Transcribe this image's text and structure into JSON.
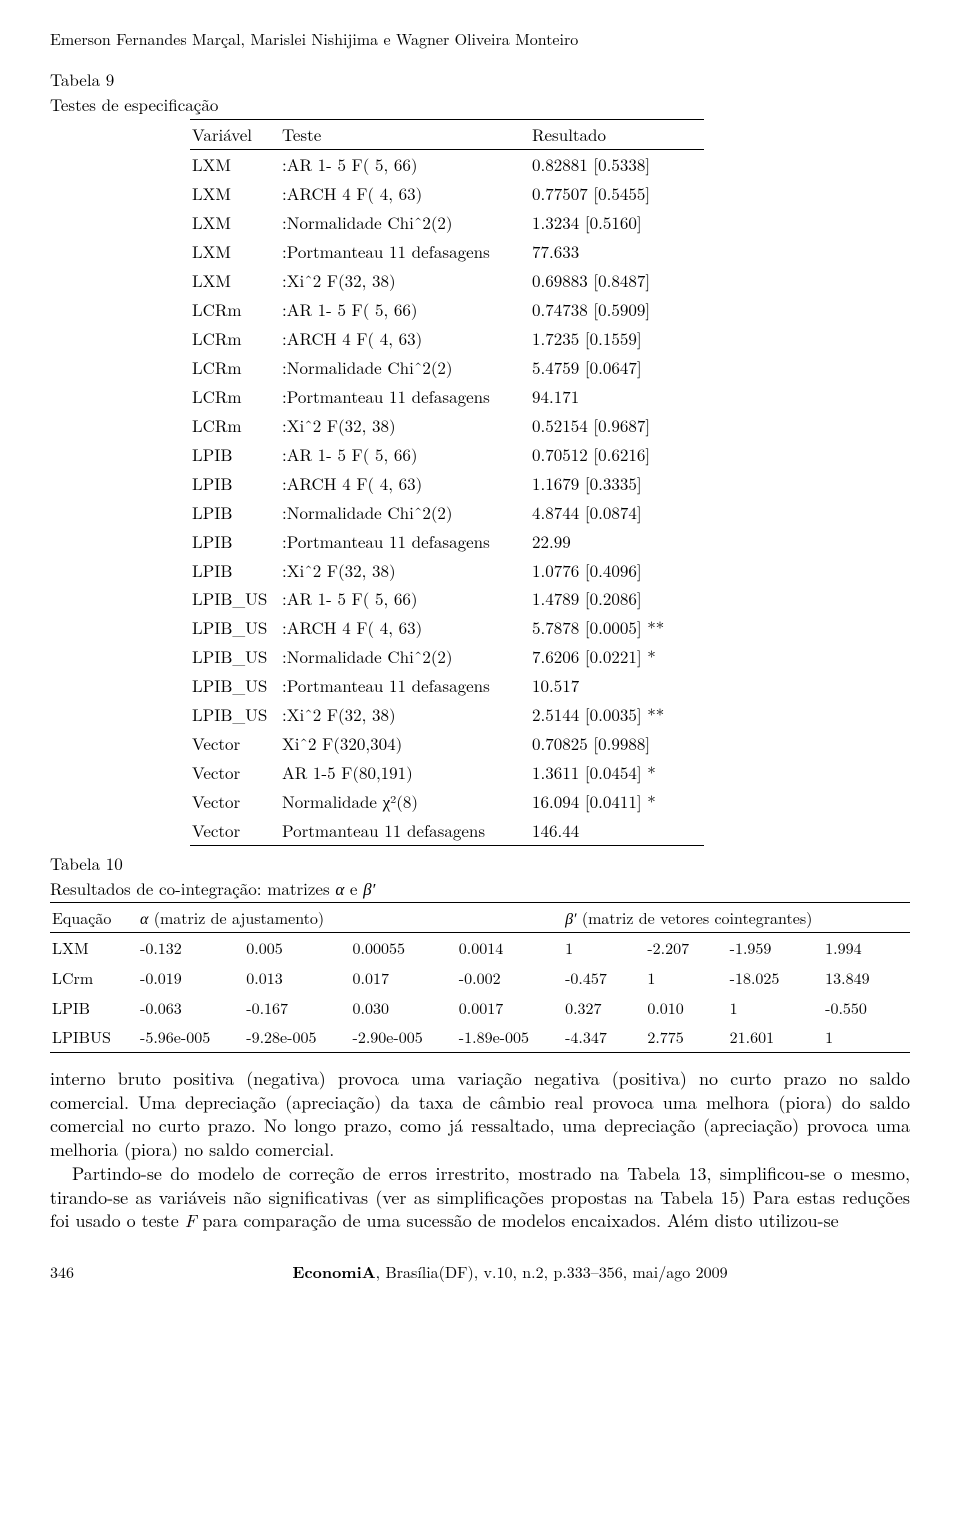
{
  "header": {
    "authors": "Emerson Fernandes Marçal, Marislei Nishijima e Wagner Oliveira Monteiro"
  },
  "table9": {
    "label": "Tabela 9",
    "caption": "Testes de especificação",
    "headers": {
      "var": "Variável",
      "test": "Teste",
      "res": "Resultado"
    },
    "rows": [
      {
        "var": "LXM",
        "test": ":AR 1- 5 F( 5, 66)",
        "res": "0.82881 [0.5338]"
      },
      {
        "var": "LXM",
        "test": ":ARCH 4 F( 4, 63)",
        "res": "0.77507 [0.5455]"
      },
      {
        "var": "LXM",
        "test": ":Normalidade Chiˆ2(2)",
        "res": "1.3234 [0.5160]"
      },
      {
        "var": "LXM",
        "test": ":Portmanteau 11 defasagens",
        "res": "77.633"
      },
      {
        "var": "LXM",
        "test": ":Xiˆ2 F(32, 38)",
        "res": "0.69883 [0.8487]"
      },
      {
        "var": "LCRm",
        "test": ":AR 1- 5 F( 5, 66)",
        "res": "0.74738 [0.5909]"
      },
      {
        "var": " LCRm",
        "test": ":ARCH 4 F( 4, 63)",
        "res": "1.7235 [0.1559]"
      },
      {
        "var": "LCRm",
        "test": ":Normalidade Chiˆ2(2)",
        "res": "5.4759 [0.0647]"
      },
      {
        "var": "LCRm",
        "test": ":Portmanteau 11 defasagens",
        "res": "94.171"
      },
      {
        "var": "LCRm",
        "test": ":Xiˆ2 F(32, 38)",
        "res": "0.52154 [0.9687]"
      },
      {
        "var": "LPIB",
        "test": ":AR 1- 5 F( 5, 66)",
        "res": "0.70512 [0.6216]"
      },
      {
        "var": "LPIB",
        "test": ":ARCH 4 F( 4, 63)",
        "res": "1.1679 [0.3335]"
      },
      {
        "var": "LPIB",
        "test": ":Normalidade Chiˆ2(2)",
        "res": "4.8744 [0.0874]"
      },
      {
        "var": "LPIB",
        "test": ":Portmanteau 11 defasagens",
        "res": "22.99"
      },
      {
        "var": "LPIB",
        "test": ":Xiˆ2 F(32, 38)",
        "res": "1.0776 [0.4096]"
      },
      {
        "var": "LPIB_US",
        "test": ":AR 1- 5 F( 5, 66)",
        "res": "1.4789 [0.2086]"
      },
      {
        "var": "LPIB_US",
        "test": ":ARCH 4 F( 4, 63)",
        "res": "5.7878 [0.0005] **"
      },
      {
        "var": "LPIB_US",
        "test": ":Normalidade Chiˆ2(2)",
        "res": "7.6206 [0.0221] *"
      },
      {
        "var": "LPIB_US",
        "test": ":Portmanteau 11 defasagens",
        "res": "10.517"
      },
      {
        "var": "LPIB_US",
        "test": ":Xiˆ2 F(32, 38)",
        "res": "2.5144 [0.0035] **"
      },
      {
        "var": "Vector",
        "test": "Xiˆ2 F(320,304)",
        "res": "0.70825 [0.9988]"
      },
      {
        "var": "Vector",
        "test": "AR 1-5 F(80,191)",
        "res": "1.3611 [0.0454] *"
      },
      {
        "var": "Vector",
        "test": "Normalidade χ²(8)",
        "res": "16.094 [0.0411] *"
      },
      {
        "var": "Vector",
        "test": "Portmanteau 11 defasagens",
        "res": "146.44"
      }
    ]
  },
  "table10": {
    "label": "Tabela 10",
    "caption_html": "Resultados de co-integração: matrizes <span class='ital'>α</span> e <span class='ital'>β′</span>",
    "head_eq": "Equação",
    "head_alpha_html": "<span class='ital'>α</span> (matriz de ajustamento)",
    "head_beta_html": "<span class='ital'>β′</span> (matriz de vetores cointegrantes)",
    "rows": [
      {
        "eq": "LXM",
        "a": [
          "-0.132",
          "0.005",
          "0.00055",
          "0.0014"
        ],
        "b": [
          "1",
          "-2.207",
          "-1.959",
          "1.994"
        ]
      },
      {
        "eq": "LCrm",
        "a": [
          "-0.019",
          "0.013",
          "0.017",
          "-0.002"
        ],
        "b": [
          "-0.457",
          "1",
          "-18.025",
          "13.849"
        ]
      },
      {
        "eq": "LPIB",
        "a": [
          "-0.063",
          "-0.167",
          "0.030",
          "0.0017"
        ],
        "b": [
          "0.327",
          "0.010",
          "1",
          "-0.550"
        ]
      },
      {
        "eq": "LPIBUS",
        "a": [
          "-5.96e-005",
          "-9.28e-005",
          "-2.90e-005",
          "-1.89e-005"
        ],
        "b": [
          "-4.347",
          "2.775",
          "21.601",
          "1"
        ]
      }
    ]
  },
  "body": {
    "p1": "interno bruto positiva (negativa) provoca uma variação negativa (positiva) no curto prazo no saldo comercial. Uma depreciação (apreciação) da taxa de câmbio real provoca uma melhora (piora) do saldo comercial no curto prazo. No longo prazo, como já ressaltado, uma depreciação (apreciação) provoca uma melhoria (piora) no saldo comercial.",
    "p2_html": "Partindo-se do modelo de correção de erros irrestrito, mostrado na Tabela 13, simplificou-se o mesmo, tirando-se as variáveis não significativas (ver as simplificações propostas na Tabela 15) Para estas reduções foi usado o teste <span class='ital'>F</span> para comparação de uma sucessão de modelos encaixados. Além disto utilizou-se"
  },
  "footer": {
    "page": "346",
    "journal_html": "<b>EconomiA</b>, Brasília(DF), v.10, n.2, p.333–356, mai/ago 2009"
  }
}
